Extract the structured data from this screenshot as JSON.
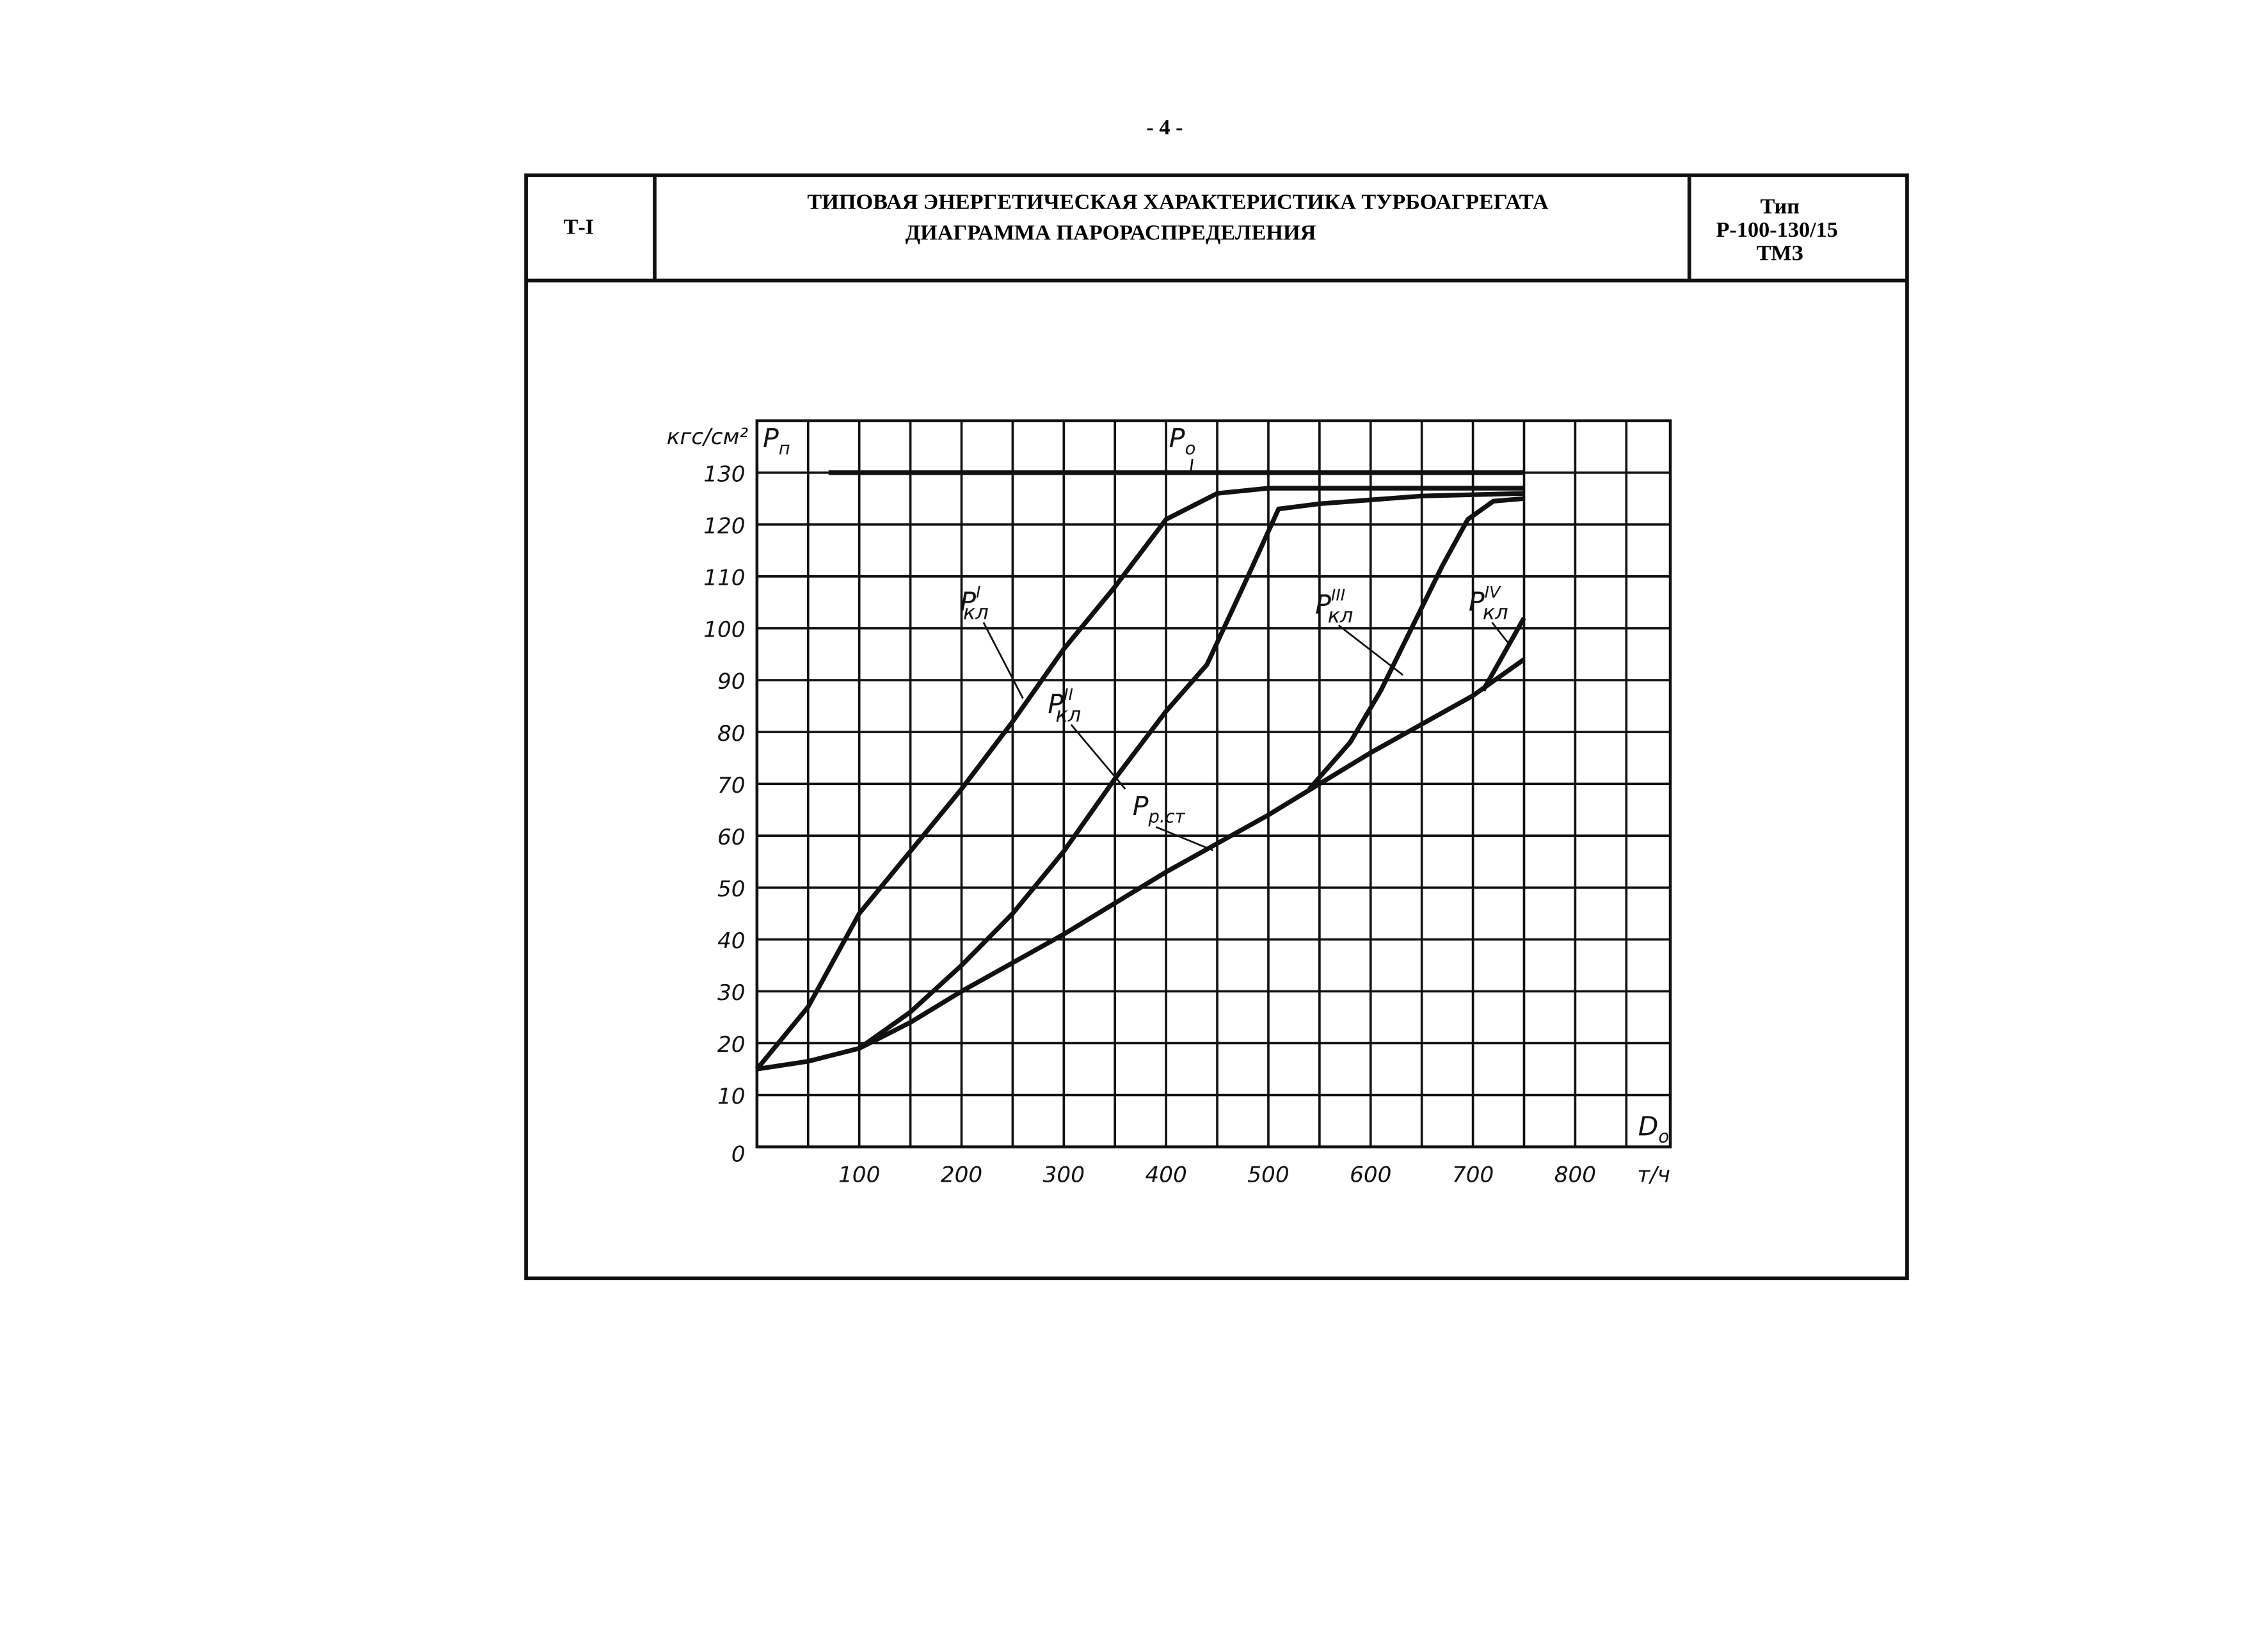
{
  "page_number": "- 4 -",
  "header": {
    "code": "Т-I",
    "title_lines": [
      "ТИПОВАЯ ЭНЕРГЕТИЧЕСКАЯ ХАРАКТЕРИСТИКА ТУРБОАГРЕГАТА",
      "ДИАГРАММА ПАРОРАСПРЕДЕЛЕНИЯ"
    ],
    "type_lines": [
      "Тип",
      "Р-100-130/15",
      "ТМЗ"
    ]
  },
  "chart_data": {
    "type": "line",
    "y_unit": "кгс/см²",
    "y_label": {
      "base": "P",
      "sub": "п"
    },
    "x_label": {
      "base": "D",
      "sub": "о"
    },
    "x_unit": "т/ч",
    "xlim": [
      0,
      893
    ],
    "ylim": [
      0,
      140
    ],
    "xticks": [
      100,
      200,
      300,
      400,
      500,
      600,
      700,
      800
    ],
    "yticks": [
      0,
      10,
      20,
      30,
      40,
      50,
      60,
      70,
      80,
      90,
      100,
      110,
      120,
      130
    ],
    "xgrid": [
      50,
      100,
      150,
      200,
      250,
      300,
      350,
      400,
      450,
      500,
      550,
      600,
      650,
      700,
      750,
      800,
      850
    ],
    "grid": true,
    "color": "#111111",
    "series": [
      {
        "name": "P",
        "sub": "о",
        "x": [
          70,
          750
        ],
        "values": [
          130,
          130
        ]
      },
      {
        "name": "P",
        "sub": "кл",
        "sup": "I",
        "x": [
          0,
          50,
          100,
          150,
          200,
          250,
          300,
          350,
          400,
          450,
          500,
          750
        ],
        "values": [
          15,
          27,
          45,
          57,
          69,
          82,
          96,
          108,
          121,
          126,
          127,
          127
        ]
      },
      {
        "name": "P",
        "sub": "кл",
        "sup": "II",
        "x": [
          100,
          150,
          200,
          250,
          300,
          350,
          400,
          440,
          480,
          510,
          550,
          650,
          750
        ],
        "values": [
          19,
          26,
          35,
          45,
          57,
          71,
          84,
          93,
          110,
          123,
          124,
          125.5,
          126
        ]
      },
      {
        "name": "P",
        "sub": "кл",
        "sup": "III",
        "x": [
          540,
          580,
          610,
          640,
          670,
          695,
          720,
          750
        ],
        "values": [
          69,
          78,
          88,
          100,
          112,
          121,
          124.5,
          125
        ]
      },
      {
        "name": "P",
        "sub": "кл",
        "sup": "IV",
        "x": [
          710,
          750
        ],
        "values": [
          88,
          102
        ]
      },
      {
        "name": "P",
        "sub": "р.ст",
        "x": [
          0,
          50,
          100,
          150,
          200,
          300,
          400,
          500,
          600,
          700,
          750
        ],
        "values": [
          15,
          16.5,
          19,
          24,
          30,
          41,
          53,
          64,
          76,
          87,
          94
        ]
      }
    ]
  }
}
